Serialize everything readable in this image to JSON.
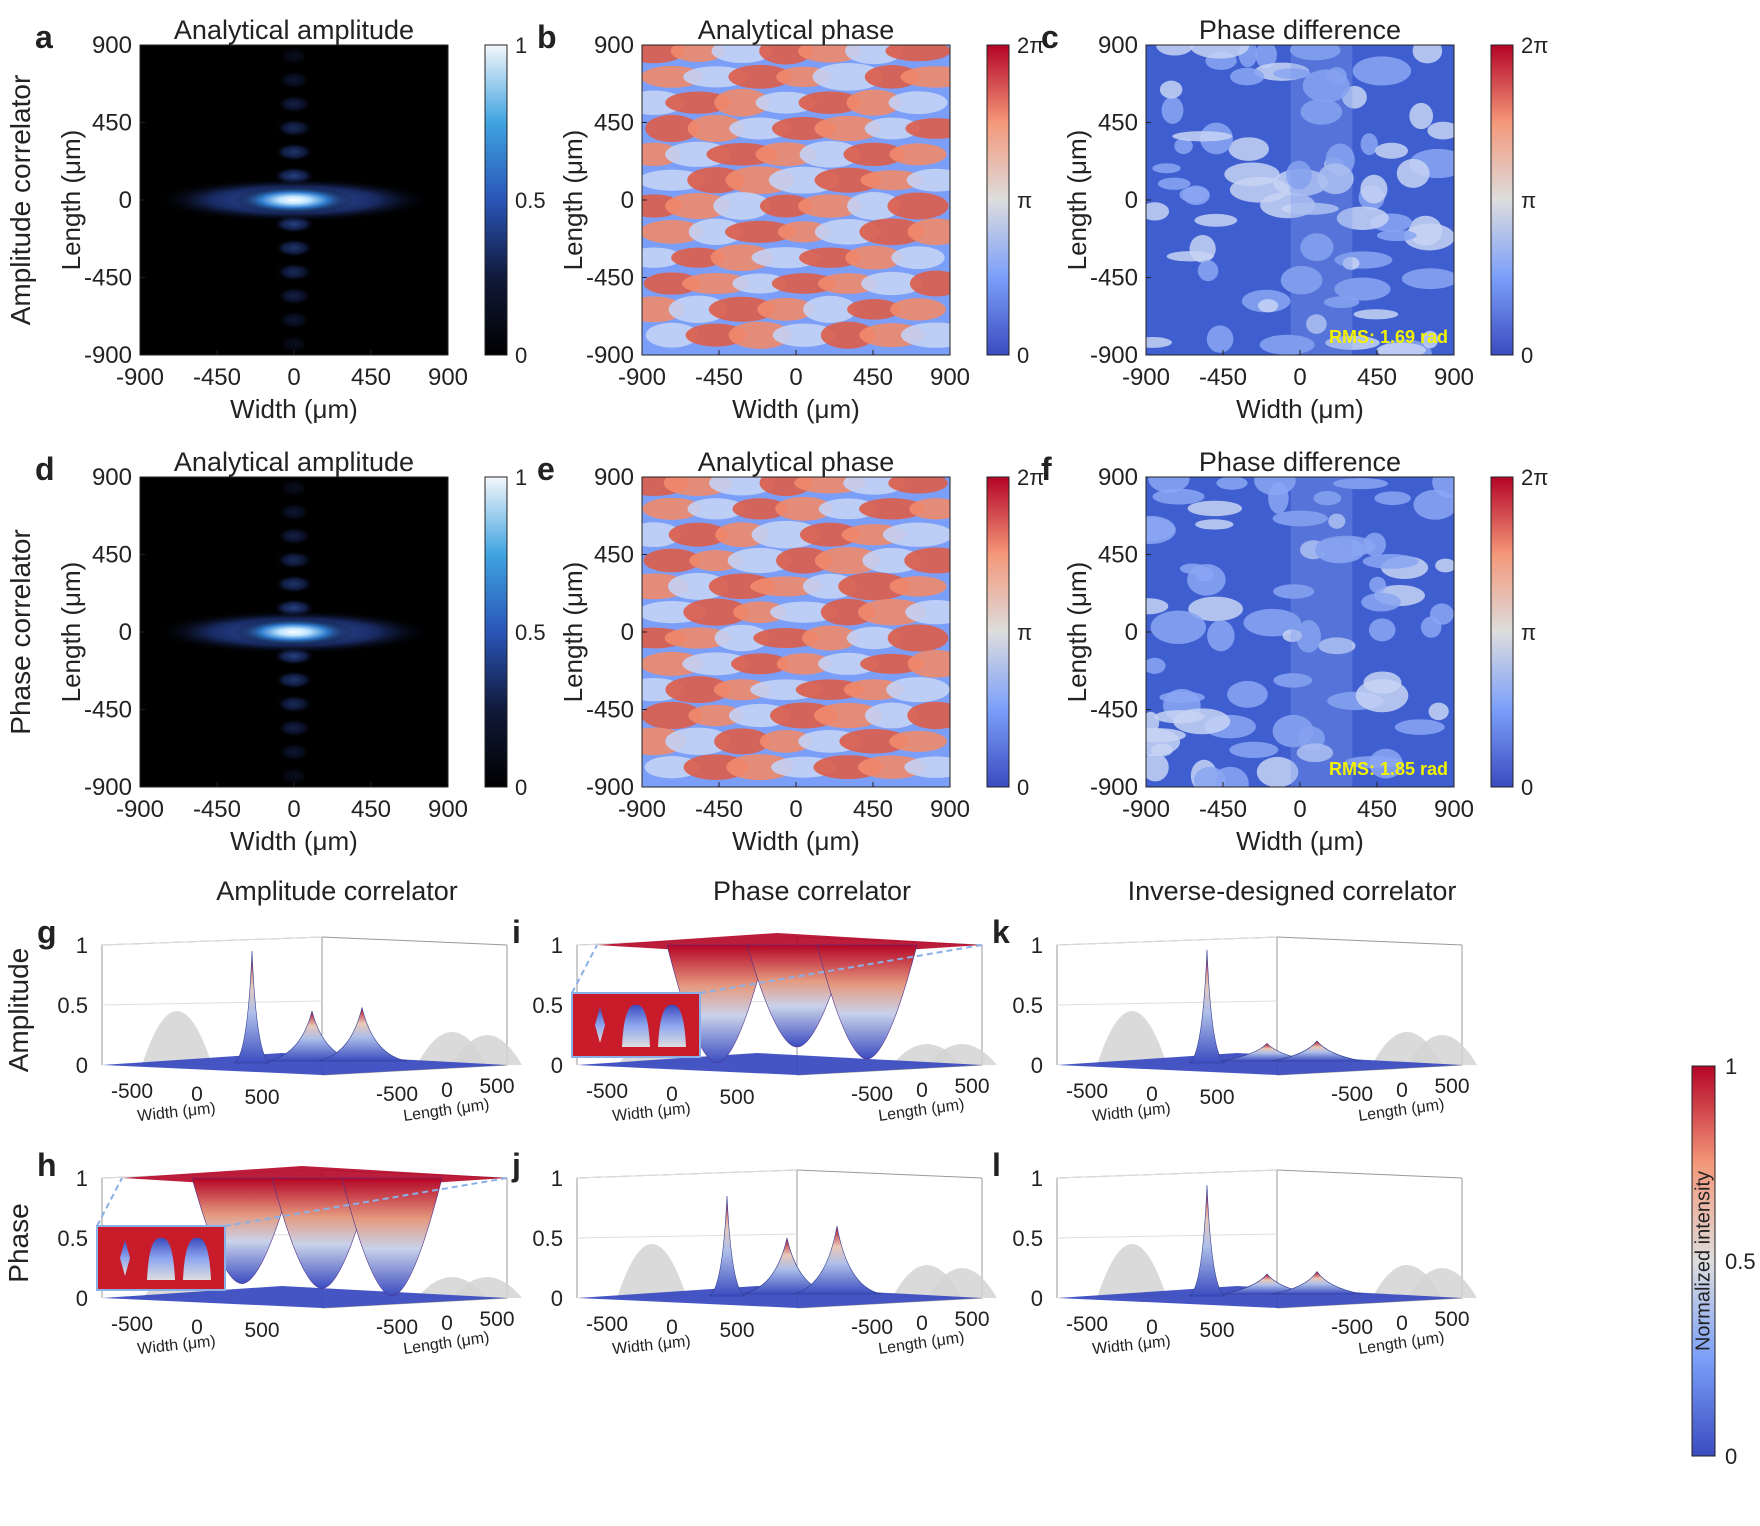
{
  "chart_data": [
    {
      "panel": "a",
      "type": "heatmap",
      "title": "Analytical amplitude",
      "xlabel": "Width (μm)",
      "ylabel": "Length (μm)",
      "row_label": "Amplitude correlator",
      "xlim": [
        -900,
        900
      ],
      "ylim": [
        -900,
        900
      ],
      "xticks": [
        "-900",
        "-450",
        "0",
        "450",
        "900"
      ],
      "yticks": [
        "900",
        "450",
        "0",
        "-450",
        "-900"
      ],
      "colorbar": [
        "1",
        "0.5",
        "0"
      ],
      "colormap": "amplitude",
      "rms": ""
    },
    {
      "panel": "b",
      "type": "heatmap",
      "title": "Analytical phase",
      "xlabel": "Width (μm)",
      "ylabel": "Length (μm)",
      "xlim": [
        -900,
        900
      ],
      "ylim": [
        -900,
        900
      ],
      "xticks": [
        "-900",
        "-450",
        "0",
        "450",
        "900"
      ],
      "yticks": [
        "900",
        "450",
        "0",
        "-450",
        "-900"
      ],
      "colorbar": [
        "2π",
        "π",
        "0"
      ],
      "colormap": "coolwarm",
      "rms": ""
    },
    {
      "panel": "c",
      "type": "heatmap",
      "title": "Phase difference",
      "xlabel": "Width (μm)",
      "ylabel": "Length (μm)",
      "xlim": [
        -900,
        900
      ],
      "ylim": [
        -900,
        900
      ],
      "xticks": [
        "-900",
        "-450",
        "0",
        "450",
        "900"
      ],
      "yticks": [
        "900",
        "450",
        "0",
        "-450",
        "-900"
      ],
      "colorbar": [
        "2π",
        "π",
        "0"
      ],
      "colormap": "coolwarm",
      "rms": "RMS: 1.69 rad"
    },
    {
      "panel": "d",
      "type": "heatmap",
      "title": "Analytical amplitude",
      "xlabel": "Width (μm)",
      "ylabel": "Length (μm)",
      "row_label": "Phase correlator",
      "xlim": [
        -900,
        900
      ],
      "ylim": [
        -900,
        900
      ],
      "xticks": [
        "-900",
        "-450",
        "0",
        "450",
        "900"
      ],
      "yticks": [
        "900",
        "450",
        "0",
        "-450",
        "-900"
      ],
      "colorbar": [
        "1",
        "0.5",
        "0"
      ],
      "colormap": "amplitude",
      "rms": ""
    },
    {
      "panel": "e",
      "type": "heatmap",
      "title": "Analytical phase",
      "xlabel": "Width (μm)",
      "ylabel": "Length (μm)",
      "xlim": [
        -900,
        900
      ],
      "ylim": [
        -900,
        900
      ],
      "xticks": [
        "-900",
        "-450",
        "0",
        "450",
        "900"
      ],
      "yticks": [
        "900",
        "450",
        "0",
        "-450",
        "-900"
      ],
      "colorbar": [
        "2π",
        "π",
        "0"
      ],
      "colormap": "coolwarm",
      "rms": ""
    },
    {
      "panel": "f",
      "type": "heatmap",
      "title": "Phase difference",
      "xlabel": "Width (μm)",
      "ylabel": "Length (μm)",
      "xlim": [
        -900,
        900
      ],
      "ylim": [
        -900,
        900
      ],
      "xticks": [
        "-900",
        "-450",
        "0",
        "450",
        "900"
      ],
      "yticks": [
        "900",
        "450",
        "0",
        "-450",
        "-900"
      ],
      "colorbar": [
        "2π",
        "π",
        "0"
      ],
      "colormap": "coolwarm",
      "rms": "RMS: 1.85 rad"
    },
    {
      "panel": "g",
      "type": "surface3d",
      "column_title": "Amplitude correlator",
      "row_label": "Amplitude",
      "mode": "peaks",
      "zlim": [
        0,
        1
      ],
      "zticks": [
        "1",
        "0.5",
        "0"
      ],
      "xlabel": "Width (μm)",
      "ylabel": "Length (μm)",
      "xticks": [
        "-500",
        "0",
        "500"
      ],
      "yticks": [
        "-500",
        "0",
        "500"
      ],
      "peaks": [
        {
          "w": 0,
          "l": 0,
          "h": 0.95
        },
        {
          "w": 0,
          "l": 330,
          "h": 0.45
        },
        {
          "w": 0,
          "l": 500,
          "h": 0.48
        }
      ],
      "inset": false
    },
    {
      "panel": "h",
      "type": "surface3d",
      "row_label": "Phase",
      "mode": "wells",
      "zlim": [
        0,
        1
      ],
      "zticks": [
        "1",
        "0.5",
        "0"
      ],
      "xlabel": "Width (μm)",
      "ylabel": "Length (μm)",
      "xticks": [
        "-500",
        "0",
        "500"
      ],
      "yticks": [
        "-500",
        "0",
        "500"
      ],
      "peaks": [
        {
          "w": 0,
          "l": 0,
          "h": 0.12
        },
        {
          "w": 0,
          "l": 330,
          "h": 0.08
        },
        {
          "w": 0,
          "l": 500,
          "h": 0.02
        }
      ],
      "inset": true
    },
    {
      "panel": "i",
      "type": "surface3d",
      "column_title": "Phase correlator",
      "mode": "wells",
      "zlim": [
        0,
        1
      ],
      "zticks": [
        "1",
        "0.5",
        "0"
      ],
      "xlabel": "Width (μm)",
      "ylabel": "Length (μm)",
      "xticks": [
        "-500",
        "0",
        "500"
      ],
      "yticks": [
        "-500",
        "0",
        "500"
      ],
      "peaks": [
        {
          "w": 0,
          "l": 0,
          "h": 0.02
        },
        {
          "w": 0,
          "l": 330,
          "h": 0.15
        },
        {
          "w": 0,
          "l": 500,
          "h": 0.05
        }
      ],
      "inset": true
    },
    {
      "panel": "j",
      "type": "surface3d",
      "mode": "peaks",
      "zlim": [
        0,
        1
      ],
      "zticks": [
        "1",
        "0.5",
        "0"
      ],
      "xlabel": "Width (μm)",
      "ylabel": "Length (μm)",
      "xticks": [
        "-500",
        "0",
        "500"
      ],
      "yticks": [
        "-500",
        "0",
        "500"
      ],
      "peaks": [
        {
          "w": 0,
          "l": 0,
          "h": 0.85
        },
        {
          "w": 0,
          "l": 330,
          "h": 0.5
        },
        {
          "w": 0,
          "l": 500,
          "h": 0.6
        }
      ],
      "inset": false
    },
    {
      "panel": "k",
      "type": "surface3d",
      "column_title": "Inverse-designed correlator",
      "mode": "peaks",
      "zlim": [
        0,
        1
      ],
      "zticks": [
        "1",
        "0.5",
        "0"
      ],
      "xlabel": "Width (μm)",
      "ylabel": "Length (μm)",
      "xticks": [
        "-500",
        "0",
        "500"
      ],
      "yticks": [
        "-500",
        "0",
        "500"
      ],
      "peaks": [
        {
          "w": 0,
          "l": 0,
          "h": 0.96
        },
        {
          "w": 0,
          "l": 330,
          "h": 0.18
        },
        {
          "w": 0,
          "l": 500,
          "h": 0.2
        }
      ],
      "inset": false
    },
    {
      "panel": "l",
      "type": "surface3d",
      "mode": "peaks",
      "zlim": [
        0,
        1
      ],
      "zticks": [
        "1",
        "0.5",
        "0"
      ],
      "xlabel": "Width (μm)",
      "ylabel": "Length (μm)",
      "xticks": [
        "-500",
        "0",
        "500"
      ],
      "yticks": [
        "-500",
        "0",
        "500"
      ],
      "peaks": [
        {
          "w": 0,
          "l": 0,
          "h": 0.94
        },
        {
          "w": 0,
          "l": 330,
          "h": 0.2
        },
        {
          "w": 0,
          "l": 500,
          "h": 0.22
        }
      ],
      "inset": false
    }
  ],
  "shared_colorbar": {
    "label": "Normalized intensity",
    "ticks": [
      "1",
      "0.5",
      "0"
    ]
  },
  "colors": {
    "rms_text": "#f2f200",
    "cool": "#3b4cc0",
    "mid": "#dddddd",
    "warm": "#b40426"
  }
}
